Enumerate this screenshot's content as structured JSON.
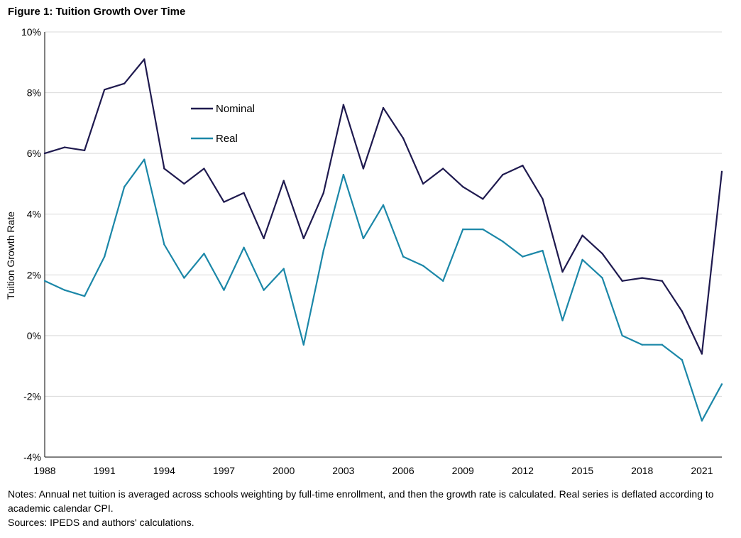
{
  "figure": {
    "title": "Figure 1: Tuition Growth Over Time"
  },
  "notes": {
    "line1": "Notes: Annual net tuition is averaged across schools weighting by full-time enrollment, and then the growth rate is calculated. Real series is deflated according to academic calendar CPI.",
    "line2": "Sources: IPEDS and authors' calculations."
  },
  "colors": {
    "nominal": "#1f1a4f",
    "real": "#1b87a8",
    "grid": "#d9d9d9",
    "axis": "#000000"
  },
  "chart_data": {
    "type": "line",
    "title": "",
    "xlabel": "",
    "ylabel": "Tuition Growth Rate",
    "x": [
      1988,
      1989,
      1990,
      1991,
      1992,
      1993,
      1994,
      1995,
      1996,
      1997,
      1998,
      1999,
      2000,
      2001,
      2002,
      2003,
      2004,
      2005,
      2006,
      2007,
      2008,
      2009,
      2010,
      2011,
      2012,
      2013,
      2014,
      2015,
      2016,
      2017,
      2018,
      2019,
      2020,
      2021,
      2022
    ],
    "xlim": [
      1988,
      2022
    ],
    "x_tick_labels": [
      "1988",
      "1991",
      "1994",
      "1997",
      "2000",
      "2003",
      "2006",
      "2009",
      "2012",
      "2015",
      "2018",
      "2021"
    ],
    "x_tick_values": [
      1988,
      1991,
      1994,
      1997,
      2000,
      2003,
      2006,
      2009,
      2012,
      2015,
      2018,
      2021
    ],
    "ylim": [
      -4,
      10
    ],
    "y_tick_values": [
      -4,
      -2,
      0,
      2,
      4,
      6,
      8,
      10
    ],
    "y_tick_labels": [
      "-4%",
      "-2%",
      "0%",
      "2%",
      "4%",
      "6%",
      "8%",
      "10%"
    ],
    "grid": "horizontal",
    "legend_position": "upper-left-inside",
    "series": [
      {
        "name": "Nominal",
        "values": [
          6.0,
          6.2,
          6.1,
          8.1,
          8.3,
          9.1,
          5.5,
          5.0,
          5.5,
          4.4,
          4.7,
          3.2,
          5.1,
          3.2,
          4.7,
          7.6,
          5.5,
          7.5,
          6.5,
          5.0,
          5.5,
          4.9,
          4.5,
          5.3,
          5.6,
          4.5,
          2.1,
          3.3,
          2.7,
          1.8,
          1.9,
          1.8,
          0.8,
          -0.6,
          5.4
        ]
      },
      {
        "name": "Real",
        "values": [
          1.8,
          1.5,
          1.3,
          2.6,
          4.9,
          5.8,
          3.0,
          1.9,
          2.7,
          1.5,
          2.9,
          1.5,
          2.2,
          -0.3,
          2.8,
          5.3,
          3.2,
          4.3,
          2.6,
          2.3,
          1.8,
          3.5,
          3.5,
          3.1,
          2.6,
          2.8,
          0.5,
          2.5,
          1.9,
          0.0,
          -0.3,
          -0.3,
          -0.8,
          -2.8,
          -1.6
        ]
      }
    ]
  }
}
